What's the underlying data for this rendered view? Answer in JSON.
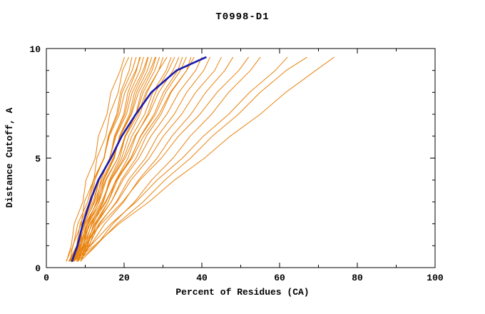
{
  "chart_data": {
    "type": "line",
    "title": "T0998-D1",
    "xlabel": "Percent of Residues (CA)",
    "ylabel": "Distance Cutoff, A",
    "xlim": [
      0,
      100
    ],
    "ylim": [
      0,
      10
    ],
    "x_ticks": [
      0,
      20,
      40,
      60,
      80,
      100
    ],
    "x_minor_step": 10,
    "y_ticks": [
      0,
      5,
      10
    ],
    "y_minor_step": 1,
    "grid": false,
    "legend": "none",
    "colors": {
      "model_line": "#e8820e",
      "highlight_line": "#1a1aae",
      "axis": "#000000"
    },
    "y_levels": [
      0.3,
      1,
      2,
      3,
      4,
      5,
      6,
      7,
      8,
      9,
      9.6
    ],
    "series": [
      {
        "name": "model-01",
        "color": "#e8820e",
        "width": 1,
        "x": [
          5.2,
          6.4,
          7.2,
          9.4,
          10.2,
          12.6,
          13.4,
          15.6,
          16.6,
          19.0,
          20.1
        ]
      },
      {
        "name": "model-02",
        "color": "#e8820e",
        "width": 1,
        "x": [
          6.1,
          6.8,
          9.0,
          9.8,
          12.2,
          13.0,
          15.3,
          16.3,
          18.5,
          19.6,
          21.2
        ]
      },
      {
        "name": "model-03",
        "color": "#e8820e",
        "width": 1,
        "x": [
          7.0,
          8.6,
          9.2,
          11.6,
          12.5,
          14.8,
          15.9,
          18.1,
          19.1,
          21.3,
          22.0
        ]
      },
      {
        "name": "model-04",
        "color": "#e8820e",
        "width": 1,
        "x": [
          5.8,
          7.8,
          8.7,
          11.1,
          12.2,
          14.9,
          16.0,
          18.4,
          19.5,
          22.1,
          23.1
        ]
      },
      {
        "name": "model-05",
        "color": "#e8820e",
        "width": 1,
        "x": [
          7.9,
          9.4,
          10.6,
          12.9,
          14.0,
          16.4,
          17.5,
          19.9,
          21.0,
          23.2,
          24.0
        ]
      },
      {
        "name": "model-06",
        "color": "#e8820e",
        "width": 1,
        "x": [
          5.1,
          6.9,
          8.1,
          10.6,
          12.1,
          14.8,
          16.2,
          18.8,
          20.2,
          23.0,
          24.2
        ]
      },
      {
        "name": "model-07",
        "color": "#e8820e",
        "width": 1,
        "x": [
          6.8,
          8.5,
          9.8,
          12.3,
          13.6,
          16.3,
          17.7,
          20.2,
          21.5,
          24.1,
          25.0
        ]
      },
      {
        "name": "model-08",
        "color": "#e8820e",
        "width": 1,
        "x": [
          6.2,
          7.9,
          9.3,
          12.0,
          13.6,
          16.3,
          17.9,
          20.6,
          22.1,
          24.9,
          26.1
        ]
      },
      {
        "name": "model-09",
        "color": "#e8820e",
        "width": 1,
        "x": [
          8.0,
          9.7,
          10.9,
          13.5,
          14.8,
          17.5,
          18.8,
          21.4,
          22.7,
          25.3,
          26.2
        ]
      },
      {
        "name": "model-10",
        "color": "#e8820e",
        "width": 1,
        "x": [
          7.1,
          8.8,
          10.3,
          13.0,
          14.6,
          17.4,
          18.9,
          21.7,
          23.2,
          26.0,
          27.1
        ]
      },
      {
        "name": "model-11",
        "color": "#e8820e",
        "width": 1,
        "x": [
          6.0,
          8.0,
          9.6,
          12.5,
          14.3,
          17.2,
          19.0,
          21.9,
          23.7,
          26.7,
          28.0
        ]
      },
      {
        "name": "model-12",
        "color": "#e8820e",
        "width": 1,
        "x": [
          8.9,
          10.7,
          12.1,
          14.6,
          16.2,
          18.9,
          20.3,
          23.0,
          24.4,
          27.2,
          28.2
        ]
      },
      {
        "name": "model-13",
        "color": "#e8820e",
        "width": 1,
        "x": [
          7.2,
          9.0,
          10.6,
          13.6,
          15.4,
          18.4,
          20.2,
          23.1,
          24.9,
          27.9,
          29.1
        ]
      },
      {
        "name": "model-14",
        "color": "#e8820e",
        "width": 1,
        "x": [
          7.8,
          10.0,
          11.6,
          14.7,
          16.4,
          19.4,
          21.2,
          24.1,
          25.9,
          28.9,
          30.0
        ]
      },
      {
        "name": "model-15",
        "color": "#e8820e",
        "width": 1,
        "x": [
          6.1,
          8.2,
          10.0,
          13.2,
          15.2,
          18.4,
          20.4,
          23.6,
          25.6,
          28.9,
          31.0
        ]
      },
      {
        "name": "model-16",
        "color": "#e8820e",
        "width": 1,
        "x": [
          7.0,
          9.3,
          11.2,
          14.5,
          16.6,
          19.9,
          22.0,
          25.3,
          27.4,
          30.8,
          32.1
        ]
      },
      {
        "name": "model-17",
        "color": "#e8820e",
        "width": 1,
        "x": [
          8.8,
          11.1,
          12.8,
          15.9,
          17.9,
          21.0,
          23.0,
          26.1,
          28.1,
          31.4,
          33.0
        ]
      },
      {
        "name": "model-18",
        "color": "#e8820e",
        "width": 1,
        "x": [
          6.2,
          8.4,
          10.6,
          14.2,
          16.7,
          20.3,
          22.8,
          26.4,
          28.9,
          32.6,
          34.1
        ]
      },
      {
        "name": "model-19",
        "color": "#e8820e",
        "width": 1,
        "x": [
          8.1,
          10.3,
          12.4,
          15.9,
          18.3,
          21.8,
          24.2,
          27.7,
          30.1,
          33.8,
          35.0
        ]
      },
      {
        "name": "model-20",
        "color": "#e8820e",
        "width": 1,
        "x": [
          6.9,
          9.5,
          11.8,
          15.4,
          17.9,
          21.7,
          24.3,
          28.1,
          30.7,
          34.5,
          36.0
        ]
      },
      {
        "name": "model-21",
        "color": "#e8820e",
        "width": 1,
        "x": [
          8.0,
          10.5,
          12.9,
          16.7,
          19.3,
          23.1,
          25.7,
          29.5,
          32.1,
          36.1,
          37.2
        ]
      },
      {
        "name": "model-22",
        "color": "#e8820e",
        "width": 1,
        "x": [
          5.9,
          8.7,
          11.3,
          15.2,
          18.1,
          22.1,
          25.0,
          29.0,
          31.9,
          36.1,
          38.0
        ]
      },
      {
        "name": "model-23",
        "color": "#e8820e",
        "width": 1,
        "x": [
          7.1,
          9.8,
          12.6,
          16.7,
          19.7,
          23.8,
          26.9,
          31.0,
          34.1,
          38.4,
          40.0
        ]
      },
      {
        "name": "model-24",
        "color": "#e8820e",
        "width": 1,
        "x": [
          7.8,
          10.9,
          13.7,
          18.0,
          21.1,
          25.5,
          28.6,
          32.9,
          36.1,
          40.5,
          42.1
        ]
      },
      {
        "name": "model-25",
        "color": "#e8820e",
        "width": 1,
        "x": [
          7.2,
          10.2,
          13.5,
          18.2,
          21.8,
          26.5,
          30.1,
          34.8,
          38.4,
          43.3,
          45.0
        ]
      },
      {
        "name": "model-26",
        "color": "#e8820e",
        "width": 1,
        "x": [
          8.2,
          11.3,
          15.0,
          19.9,
          23.7,
          28.5,
          32.3,
          37.2,
          41.0,
          45.9,
          48.0
        ]
      },
      {
        "name": "model-27",
        "color": "#e8820e",
        "width": 1,
        "x": [
          6.1,
          9.8,
          14.1,
          19.6,
          24.1,
          29.6,
          34.0,
          39.5,
          43.9,
          49.5,
          52.0
        ]
      },
      {
        "name": "model-28",
        "color": "#e8820e",
        "width": 1,
        "x": [
          8.8,
          12.8,
          17.1,
          22.7,
          27.1,
          32.6,
          37.0,
          42.5,
          46.9,
          52.5,
          55.0
        ]
      },
      {
        "name": "model-29",
        "color": "#e8820e",
        "width": 1,
        "x": [
          7.2,
          11.4,
          16.6,
          23.1,
          28.5,
          35.0,
          40.4,
          46.9,
          52.3,
          58.9,
          62.0
        ]
      },
      {
        "name": "model-30",
        "color": "#e8820e",
        "width": 1,
        "x": [
          8.1,
          12.7,
          18.2,
          24.9,
          30.5,
          37.1,
          42.7,
          49.4,
          55.0,
          61.7,
          67.0
        ]
      },
      {
        "name": "model-31",
        "color": "#e8820e",
        "width": 1,
        "x": [
          7.0,
          12.3,
          18.7,
          26.4,
          33.0,
          40.7,
          47.3,
          55.0,
          61.6,
          69.3,
          74.0
        ]
      },
      {
        "name": "highlight-model",
        "color": "#1a1aae",
        "width": 2.6,
        "x": [
          6.6,
          8.0,
          9.4,
          11.2,
          13.4,
          16.6,
          19.4,
          23.0,
          27.0,
          33.5,
          41.0
        ]
      }
    ]
  }
}
